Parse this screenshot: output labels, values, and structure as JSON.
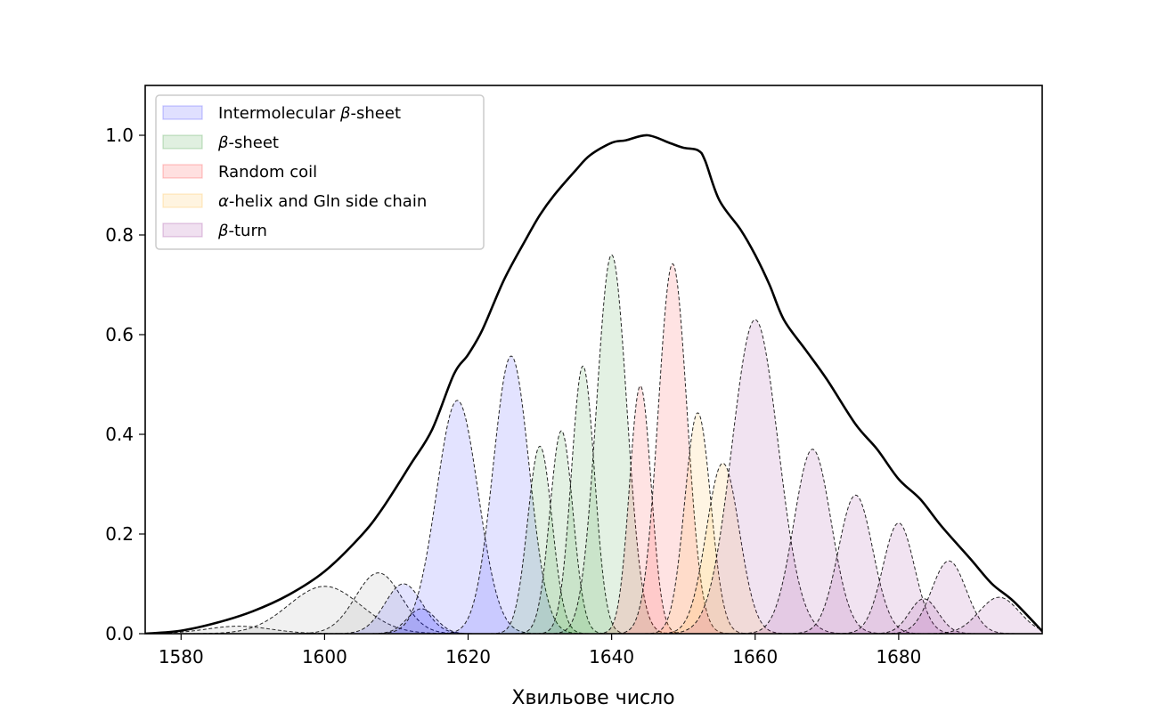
{
  "chart_data": {
    "type": "area",
    "title": "",
    "xlabel": "Хвильове число",
    "ylabel": "",
    "xlim": [
      1575,
      1700
    ],
    "ylim": [
      0,
      1.1
    ],
    "x_ticks": [
      1580,
      1600,
      1620,
      1640,
      1660,
      1680
    ],
    "y_ticks": [
      0.0,
      0.2,
      0.4,
      0.6,
      0.8,
      1.0
    ],
    "x_tick_labels": [
      "1580",
      "1600",
      "1620",
      "1640",
      "1660",
      "1680"
    ],
    "y_tick_labels": [
      "0.0",
      "0.2",
      "0.4",
      "0.6",
      "0.8",
      "1.0"
    ],
    "legend_position": "top-left",
    "categories": [
      {
        "key": "inter",
        "label_prefix": "Intermolecular ",
        "label_greek": "β",
        "label_suffix": "-sheet",
        "color": "#0000ff"
      },
      {
        "key": "sheet",
        "label_prefix": "",
        "label_greek": "β",
        "label_suffix": "-sheet",
        "color": "#008000"
      },
      {
        "key": "coil",
        "label_prefix": "Random coil",
        "label_greek": "",
        "label_suffix": "",
        "color": "#ff0000"
      },
      {
        "key": "helix",
        "label_prefix": "",
        "label_greek": "α",
        "label_suffix": "-helix and Gln side chain",
        "color": "#ffa500"
      },
      {
        "key": "turn",
        "label_prefix": "",
        "label_greek": "β",
        "label_suffix": "-turn",
        "color": "#800080"
      },
      {
        "key": "other",
        "color": "#808080"
      }
    ],
    "components": [
      {
        "category": "other",
        "center": 1588.0,
        "amplitude": 0.015,
        "width": 4.5
      },
      {
        "category": "other",
        "center": 1600.0,
        "amplitude": 0.095,
        "width": 5.0
      },
      {
        "category": "other",
        "center": 1607.5,
        "amplitude": 0.122,
        "width": 3.2
      },
      {
        "category": "inter",
        "center": 1611.0,
        "amplitude": 0.1,
        "width": 2.6
      },
      {
        "category": "inter",
        "center": 1613.5,
        "amplitude": 0.05,
        "width": 2.0
      },
      {
        "category": "inter",
        "center": 1618.5,
        "amplitude": 0.468,
        "width": 2.9
      },
      {
        "category": "inter",
        "center": 1626.0,
        "amplitude": 0.557,
        "width": 2.5
      },
      {
        "category": "sheet",
        "center": 1630.0,
        "amplitude": 0.376,
        "width": 1.7
      },
      {
        "category": "sheet",
        "center": 1633.0,
        "amplitude": 0.407,
        "width": 1.6
      },
      {
        "category": "sheet",
        "center": 1636.0,
        "amplitude": 0.537,
        "width": 1.6
      },
      {
        "category": "sheet",
        "center": 1640.0,
        "amplitude": 0.76,
        "width": 2.1
      },
      {
        "category": "coil",
        "center": 1644.0,
        "amplitude": 0.497,
        "width": 1.5
      },
      {
        "category": "coil",
        "center": 1648.5,
        "amplitude": 0.742,
        "width": 2.0
      },
      {
        "category": "helix",
        "center": 1652.0,
        "amplitude": 0.443,
        "width": 1.8
      },
      {
        "category": "helix",
        "center": 1655.5,
        "amplitude": 0.342,
        "width": 2.3
      },
      {
        "category": "turn",
        "center": 1660.0,
        "amplitude": 0.63,
        "width": 3.2
      },
      {
        "category": "turn",
        "center": 1668.0,
        "amplitude": 0.37,
        "width": 2.6
      },
      {
        "category": "turn",
        "center": 1674.0,
        "amplitude": 0.278,
        "width": 2.4
      },
      {
        "category": "turn",
        "center": 1680.0,
        "amplitude": 0.222,
        "width": 2.2
      },
      {
        "category": "turn",
        "center": 1683.5,
        "amplitude": 0.07,
        "width": 2.0
      },
      {
        "category": "turn",
        "center": 1687.0,
        "amplitude": 0.146,
        "width": 2.4
      },
      {
        "category": "turn",
        "center": 1694.0,
        "amplitude": 0.073,
        "width": 2.8
      }
    ],
    "total_curve": {
      "name": "total",
      "color": "#000000",
      "x": [
        1575,
        1580,
        1585,
        1590,
        1595,
        1600,
        1605,
        1608,
        1612,
        1615,
        1618,
        1620,
        1622,
        1625,
        1628,
        1630,
        1632,
        1635,
        1637,
        1640,
        1642,
        1645,
        1648,
        1650,
        1652,
        1653,
        1655,
        1658,
        1660,
        1662,
        1664,
        1667,
        1670,
        1674,
        1677,
        1680,
        1683,
        1686,
        1690,
        1693,
        1696,
        1700
      ],
      "y": [
        0.0,
        0.006,
        0.022,
        0.045,
        0.078,
        0.125,
        0.195,
        0.25,
        0.34,
        0.41,
        0.52,
        0.56,
        0.61,
        0.71,
        0.79,
        0.84,
        0.88,
        0.93,
        0.96,
        0.985,
        0.99,
        1.0,
        0.985,
        0.975,
        0.97,
        0.95,
        0.87,
        0.81,
        0.76,
        0.7,
        0.63,
        0.57,
        0.51,
        0.42,
        0.37,
        0.31,
        0.27,
        0.215,
        0.15,
        0.1,
        0.065,
        0.005
      ]
    }
  }
}
